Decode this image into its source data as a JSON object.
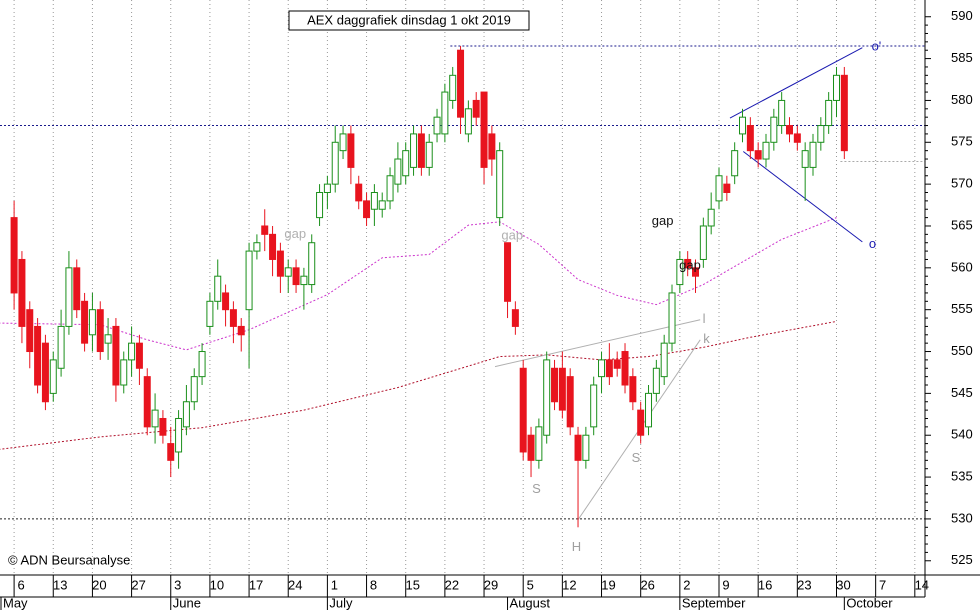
{
  "chart_data": {
    "type": "candlestick",
    "title": "AEX daggrafiek dinsdag 1 okt 2019",
    "copyright": "© ADN Beursanalyse",
    "up_color": "#1a8f1a",
    "down_color": "#e8141e",
    "x": [
      0,
      1,
      2,
      3,
      4,
      5,
      6,
      7,
      8,
      9,
      10,
      11,
      12,
      13,
      14,
      15,
      16,
      17,
      18,
      19,
      20,
      21,
      22,
      23,
      24,
      25,
      26,
      27,
      28,
      29,
      30,
      31,
      32,
      33,
      34,
      35,
      36,
      37,
      38,
      39,
      40,
      41,
      42,
      43,
      44,
      45,
      46,
      47,
      48,
      49,
      50,
      51,
      52,
      53,
      54,
      55,
      56,
      57,
      58,
      59,
      60,
      61,
      62,
      63,
      64,
      65,
      66,
      67,
      68,
      69,
      70,
      71,
      72,
      73,
      74,
      75,
      76,
      77,
      78,
      79,
      80,
      81,
      82,
      83,
      84,
      85,
      86,
      87,
      88,
      89,
      90,
      91,
      92,
      93,
      94,
      95,
      96,
      97,
      98,
      99,
      100,
      101,
      102,
      103,
      104,
      105,
      106
    ],
    "open": [
      566,
      561,
      555,
      553,
      551,
      545,
      548,
      553,
      560,
      556,
      552,
      555,
      551,
      553,
      546,
      549,
      551,
      547,
      541,
      542,
      539,
      538,
      541,
      544,
      547,
      553,
      556,
      557,
      555,
      553,
      555,
      562,
      565,
      564,
      562,
      559,
      560,
      558,
      558,
      566,
      569,
      570,
      574,
      576,
      570,
      568,
      567,
      567,
      568,
      570,
      571,
      572,
      576,
      572,
      576,
      576,
      580,
      586,
      576,
      580,
      581,
      576,
      566,
      563,
      555,
      548,
      540,
      537,
      540,
      548,
      548,
      547,
      540,
      537,
      541,
      547,
      549,
      549,
      550,
      547,
      543,
      541,
      545,
      547,
      551,
      558,
      561,
      560,
      561,
      565,
      568,
      570,
      571,
      576,
      577,
      574,
      573,
      575,
      577,
      577,
      576,
      572,
      572,
      575,
      577,
      580,
      583
    ],
    "high": [
      568,
      562,
      556,
      554,
      552,
      550,
      555,
      562,
      561,
      557,
      557,
      556,
      554,
      554,
      550,
      553,
      552,
      548,
      545,
      543,
      541,
      543,
      546,
      548,
      551,
      557,
      561,
      558,
      556,
      554,
      563,
      564,
      567,
      565,
      563,
      561,
      561,
      560,
      564,
      570,
      571,
      577,
      577,
      577,
      571,
      569,
      570,
      569,
      572,
      575,
      575,
      577,
      577,
      576,
      579,
      582,
      584,
      586.5,
      580,
      581,
      581,
      577,
      575,
      563,
      556,
      549,
      541,
      542,
      550,
      549,
      550,
      548,
      541,
      541,
      547,
      550,
      551,
      550,
      551,
      548,
      544,
      546,
      549,
      552,
      558,
      562,
      562,
      561,
      566,
      569,
      572,
      571,
      575,
      579,
      578,
      575,
      576,
      579,
      581,
      578,
      577,
      575,
      576,
      578,
      581,
      584,
      584
    ],
    "low": [
      555,
      551,
      548,
      545,
      543,
      544,
      547,
      552,
      554,
      550,
      550,
      549,
      549,
      544,
      545,
      547,
      546,
      540,
      539,
      539,
      535,
      536,
      540,
      543,
      546,
      552,
      555,
      553,
      551,
      550,
      548,
      561,
      562,
      559,
      557,
      557,
      557,
      555,
      557,
      565,
      567,
      569,
      573,
      570,
      567,
      565,
      565,
      566,
      567,
      569,
      570,
      571,
      571,
      571,
      575,
      575,
      579,
      576,
      575,
      577,
      570,
      571,
      565,
      554,
      552,
      537,
      535,
      536,
      539,
      543,
      542,
      540,
      529,
      536,
      540,
      545,
      546,
      547,
      545,
      543,
      539,
      540,
      544,
      546,
      550,
      557,
      559,
      557,
      560,
      564,
      567,
      568,
      570,
      575,
      573,
      572,
      572,
      574,
      576,
      575,
      574,
      568,
      571,
      574,
      576,
      578,
      573
    ],
    "close": [
      557,
      553,
      550,
      546,
      544,
      549,
      553,
      560,
      555,
      551,
      555,
      550,
      552,
      546,
      549,
      551,
      548,
      541,
      543,
      540,
      537,
      542,
      544,
      547,
      550,
      556,
      559,
      555,
      553,
      552,
      562,
      563,
      564,
      561,
      559,
      560,
      558,
      559,
      563,
      569,
      570,
      575,
      576,
      572,
      568,
      566,
      569,
      568,
      571,
      573,
      574,
      576,
      572,
      575,
      578,
      581,
      583,
      578,
      579,
      578,
      572,
      573,
      574,
      556,
      553,
      538,
      537,
      541,
      549,
      544,
      543,
      541,
      537,
      540,
      546,
      549,
      547,
      548,
      546,
      544,
      540,
      545,
      548,
      551,
      557,
      561,
      560,
      559,
      565,
      567,
      571,
      569,
      574,
      578,
      574,
      573,
      575,
      578,
      580,
      576,
      575,
      574,
      575,
      577,
      580,
      583,
      574
    ],
    "moving_averages": [
      {
        "color": "#cc33cc",
        "x": [
          -2,
          11,
          17,
          22,
          30,
          40,
          47,
          53,
          58,
          62,
          67,
          72,
          77,
          82,
          88,
          93,
          98,
          105
        ],
        "values": [
          553.4,
          553.2,
          551.4,
          550.2,
          552.6,
          556.8,
          561.2,
          561.6,
          565.1,
          565.5,
          562.8,
          558.6,
          556.7,
          555.6,
          558,
          560.7,
          563.4,
          566
        ]
      },
      {
        "color": "#b0102a",
        "x": [
          -2,
          11,
          24,
          37,
          49,
          62,
          68,
          75,
          81,
          88,
          94,
          105
        ],
        "values": [
          538.3,
          539.8,
          540.9,
          543,
          545.7,
          549.4,
          549.6,
          549,
          549.4,
          550.5,
          551.7,
          553.6
        ]
      }
    ],
    "reference_lines": [
      {
        "value": 586.5,
        "from": 55.7,
        "color": "#1a1a8c"
      },
      {
        "value": 577,
        "from": -1.8,
        "color": "#1a1a8c"
      },
      {
        "value": 530,
        "from": -1.8,
        "color": "#222222"
      },
      {
        "value": 572.7,
        "from": 105.5,
        "color": "#aaaaaa"
      }
    ],
    "trend_lines": [
      {
        "x": [
          91.4,
          108.3
        ],
        "values": [
          577.9,
          586.3
        ],
        "color": "#1a1ab0"
      },
      {
        "x": [
          93.1,
          108.3
        ],
        "values": [
          573.9,
          563.1
        ],
        "color": "#1a1ab0"
      },
      {
        "x": [
          61.4,
          87.6
        ],
        "values": [
          548.2,
          553.8
        ],
        "color": "#b0b0b0"
      },
      {
        "x": [
          72,
          87.6
        ],
        "values": [
          529.9,
          551.4
        ],
        "color": "#b0b0b0"
      }
    ],
    "annotations": [
      {
        "text": "gap",
        "x": 35.9,
        "y": 564,
        "color": "#b0b0b0"
      },
      {
        "text": "gap",
        "x": 63.6,
        "y": 563.8,
        "color": "#b0b0b0"
      },
      {
        "text": "gap",
        "x": 82.8,
        "y": 565.5,
        "color": "#111111"
      },
      {
        "text": "gap",
        "x": 86.3,
        "y": 560.2,
        "color": "#111111"
      },
      {
        "text": "S",
        "x": 66.7,
        "y": 533.5,
        "color": "#a0a0a0"
      },
      {
        "text": "H",
        "x": 71.8,
        "y": 526.6,
        "color": "#a0a0a0"
      },
      {
        "text": "S",
        "x": 79.4,
        "y": 537.2,
        "color": "#a0a0a0"
      },
      {
        "text": "l",
        "x": 88.1,
        "y": 553.8,
        "color": "#a0a0a0"
      },
      {
        "text": "k",
        "x": 88.4,
        "y": 551.4,
        "color": "#a0a0a0"
      },
      {
        "text": "o'",
        "x": 110.1,
        "y": 586.4,
        "color": "#1a1ab0"
      },
      {
        "text": "o",
        "x": 109.6,
        "y": 562.8,
        "color": "#1a1ab0"
      }
    ],
    "xlim": [
      -1.8,
      116.3
    ],
    "xticks": [
      {
        "value": 0,
        "label": "6"
      },
      {
        "value": 5,
        "label": "13"
      },
      {
        "value": 10,
        "label": "20"
      },
      {
        "value": 15,
        "label": "27"
      },
      {
        "value": 20,
        "label": "3"
      },
      {
        "value": 25,
        "label": "10"
      },
      {
        "value": 30,
        "label": "17"
      },
      {
        "value": 35,
        "label": "24"
      },
      {
        "value": 40,
        "label": "1"
      },
      {
        "value": 45,
        "label": "8"
      },
      {
        "value": 50,
        "label": "15"
      },
      {
        "value": 55,
        "label": "22"
      },
      {
        "value": 60,
        "label": "29"
      },
      {
        "value": 65,
        "label": "5"
      },
      {
        "value": 70,
        "label": "12"
      },
      {
        "value": 75,
        "label": "19"
      },
      {
        "value": 80,
        "label": "26"
      },
      {
        "value": 85,
        "label": "2"
      },
      {
        "value": 90,
        "label": "9"
      },
      {
        "value": 95,
        "label": "16"
      },
      {
        "value": 100,
        "label": "23"
      },
      {
        "value": 105,
        "label": "30"
      },
      {
        "value": 110,
        "label": "7"
      },
      {
        "value": 115,
        "label": "14"
      }
    ],
    "months": [
      {
        "value": -4,
        "label": "May"
      },
      {
        "value": 20,
        "label": "June"
      },
      {
        "value": 40,
        "label": "July"
      },
      {
        "value": 63,
        "label": "August"
      },
      {
        "value": 85,
        "label": "September"
      },
      {
        "value": 106,
        "label": "October"
      }
    ],
    "ylim": [
      523.3,
      592
    ],
    "yticks": [
      525,
      530,
      535,
      540,
      545,
      550,
      555,
      560,
      565,
      570,
      575,
      580,
      585,
      590
    ],
    "grid": true
  }
}
